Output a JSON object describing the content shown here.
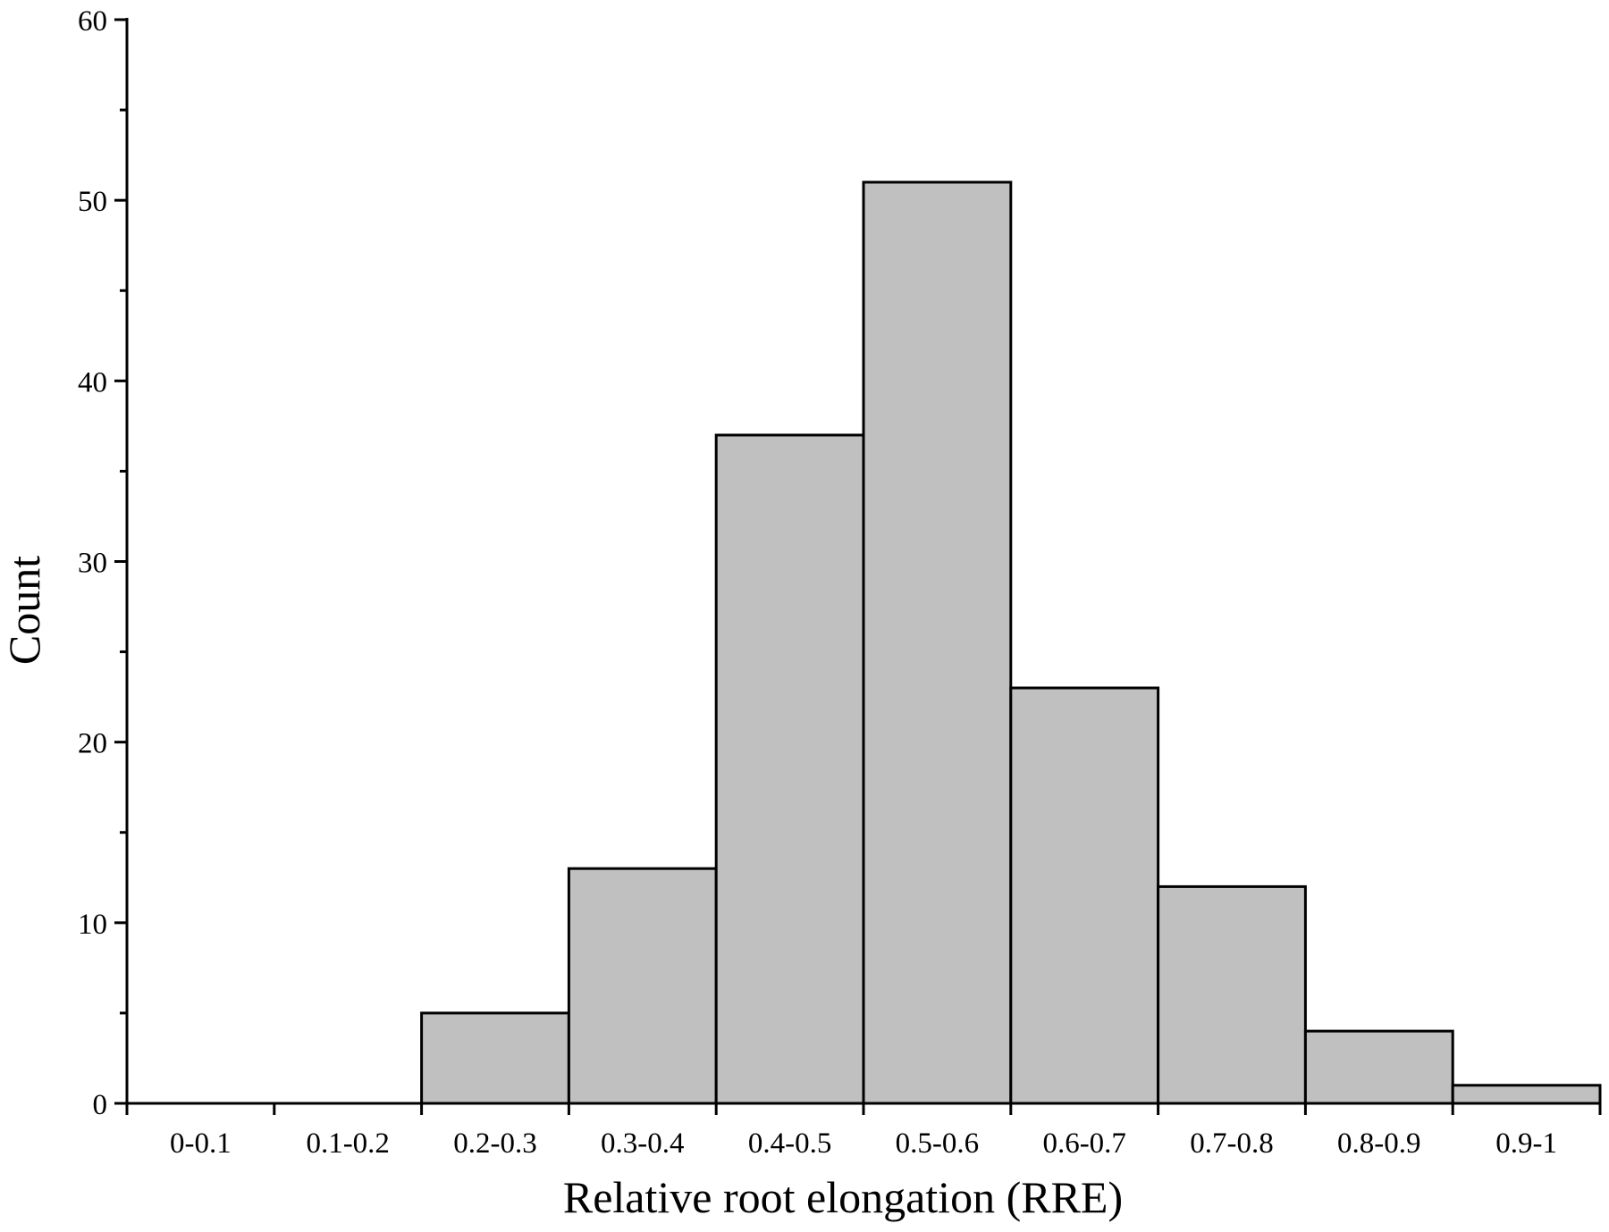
{
  "chart_data": {
    "type": "bar",
    "title": "",
    "xlabel": "Relative root elongation (RRE)",
    "ylabel": "Count",
    "categories": [
      "0-0.1",
      "0.1-0.2",
      "0.2-0.3",
      "0.3-0.4",
      "0.4-0.5",
      "0.5-0.6",
      "0.6-0.7",
      "0.7-0.8",
      "0.8-0.9",
      "0.9-1"
    ],
    "values": [
      0,
      0,
      5,
      13,
      37,
      51,
      23,
      12,
      4,
      1
    ],
    "ylim": [
      0,
      60
    ],
    "yticks": [
      0,
      10,
      20,
      30,
      40,
      50,
      60
    ],
    "grid": false,
    "bar_color": "#c0c0c0",
    "edge_color": "#000000"
  }
}
